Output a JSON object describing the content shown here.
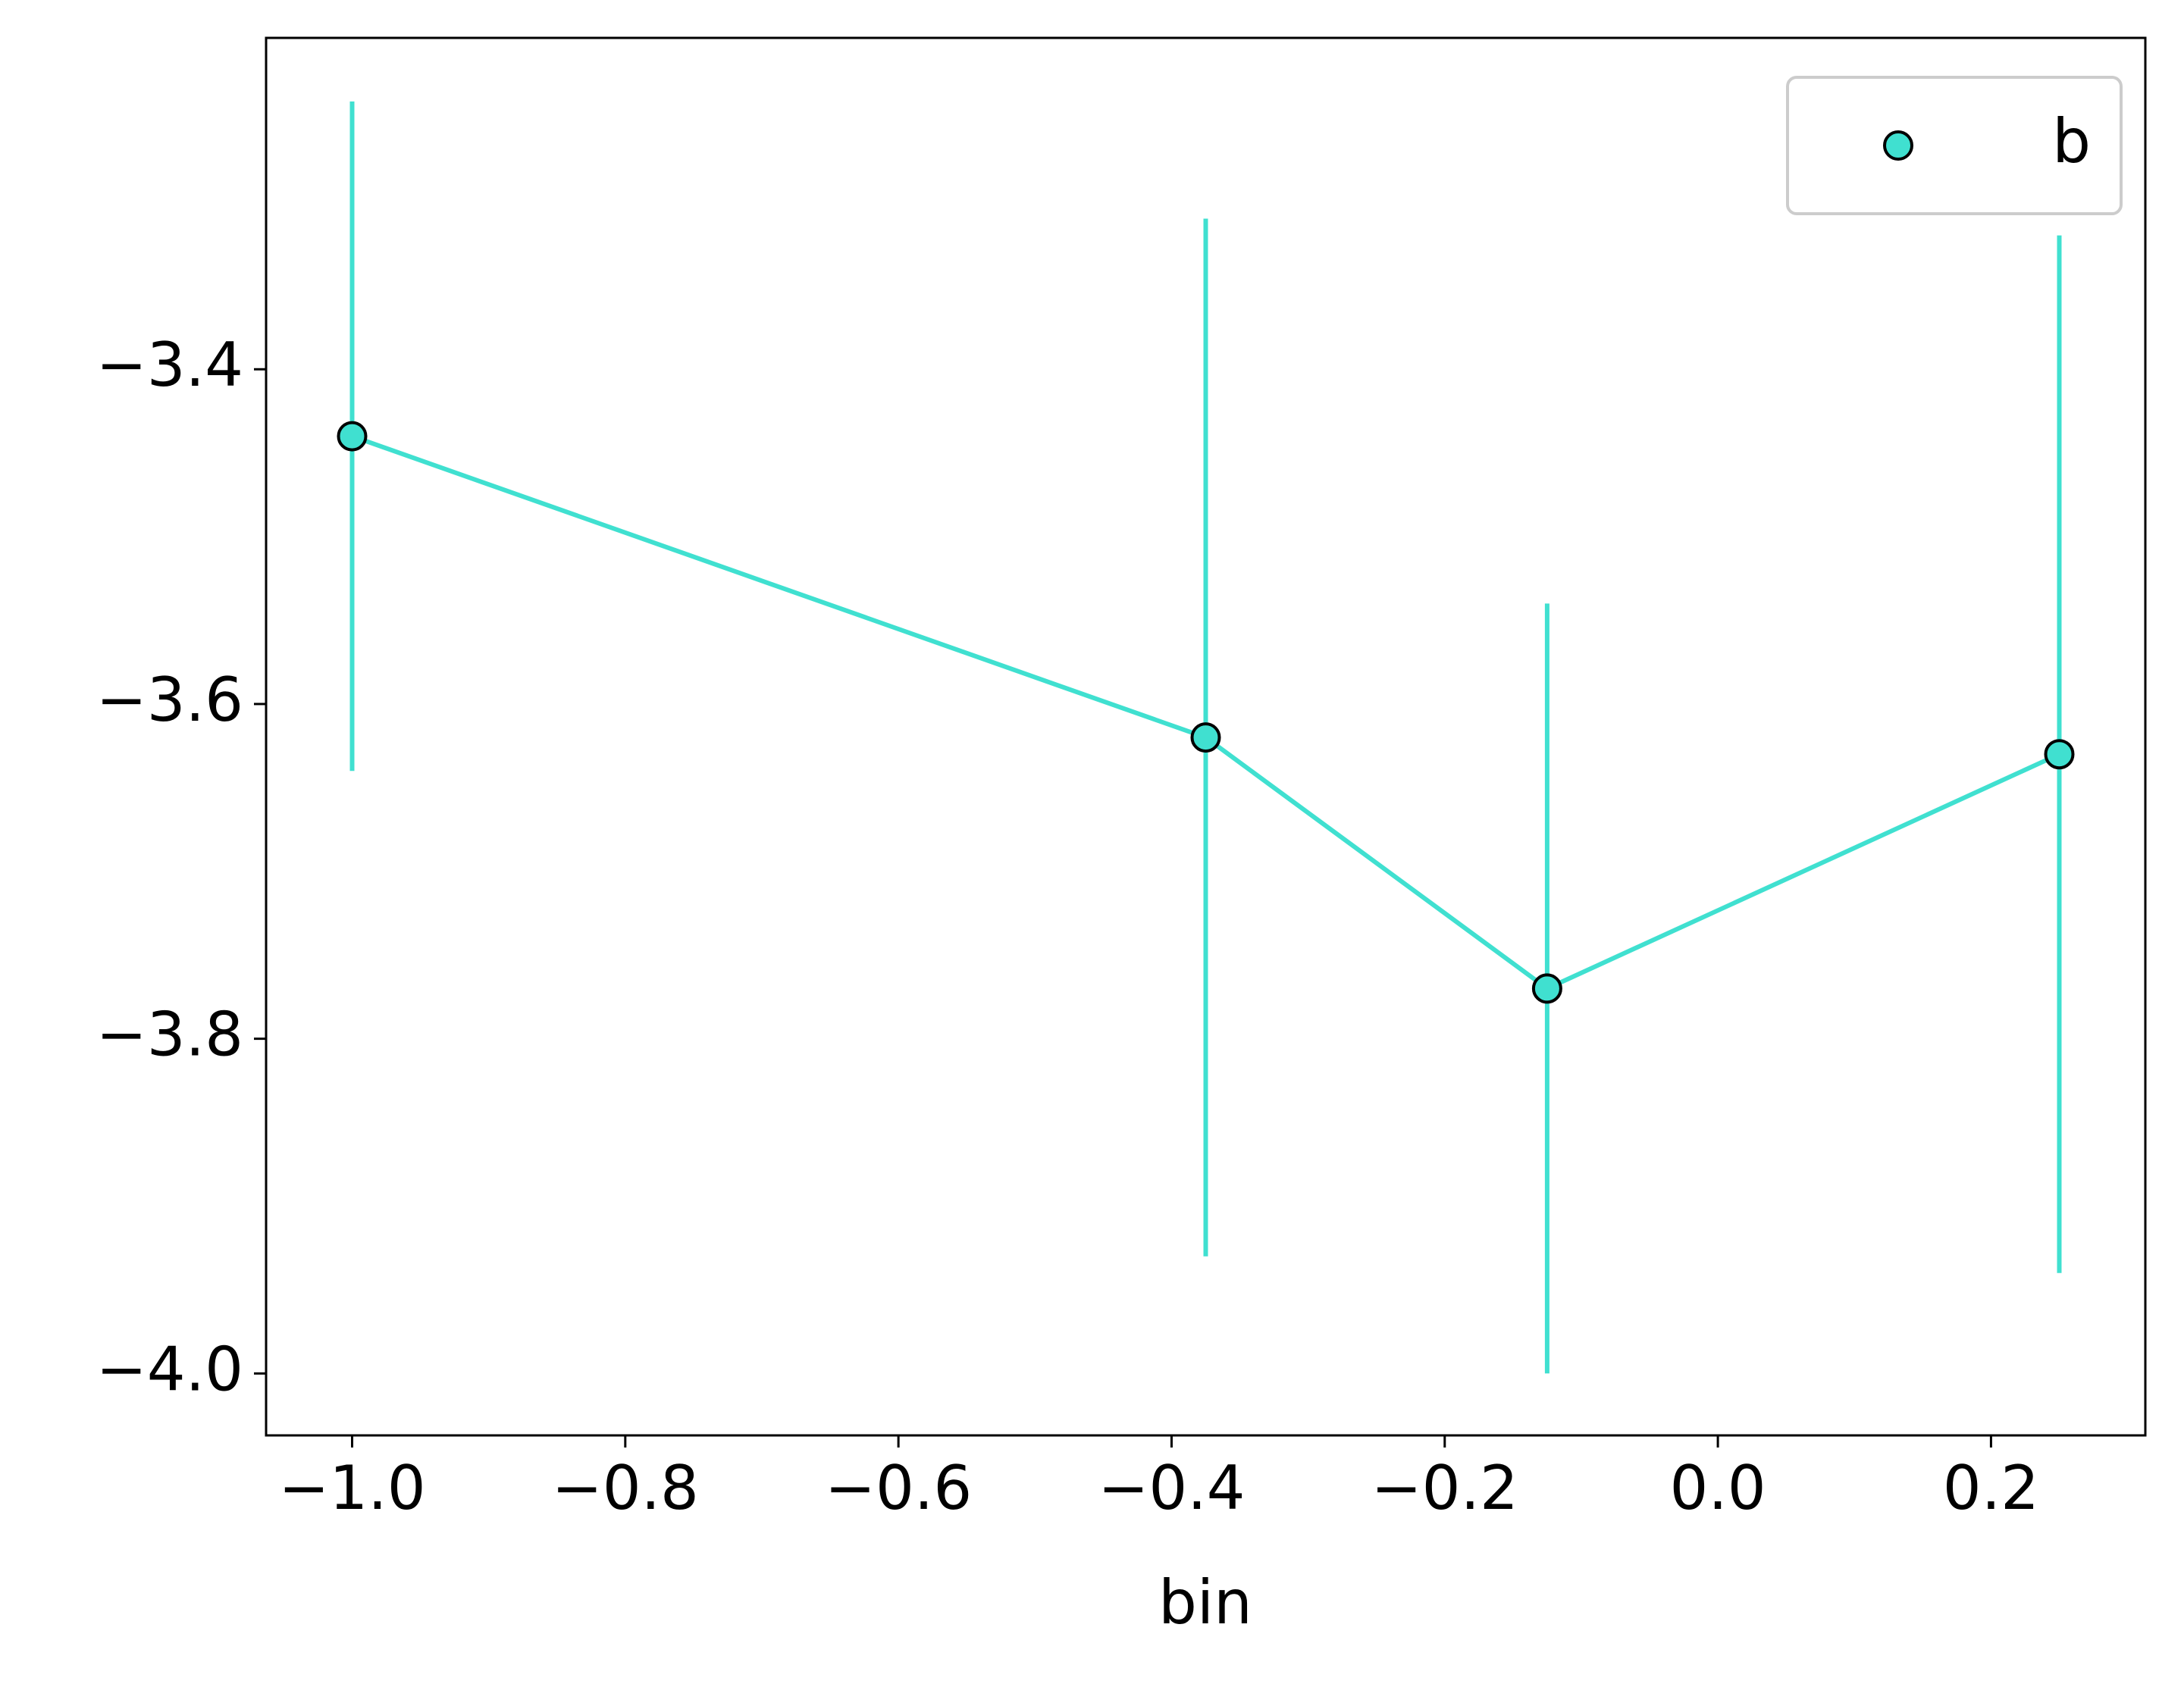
{
  "chart_data": {
    "type": "line",
    "x_label": "bin",
    "x": [
      -1.0,
      -0.375,
      -0.125,
      0.25
    ],
    "series": [
      {
        "name": "b",
        "color": "#40e0d0",
        "values": [
          -3.44,
          -3.62,
          -3.77,
          -3.63
        ],
        "errors": [
          0.2,
          0.31,
          0.23,
          0.31
        ]
      }
    ],
    "xlim": [
      -1.063,
      0.313
    ],
    "ylim": [
      -4.037,
      -3.202
    ],
    "xticks": [
      {
        "value": -1.0,
        "label": "−1.0"
      },
      {
        "value": -0.8,
        "label": "−0.8"
      },
      {
        "value": -0.6,
        "label": "−0.6"
      },
      {
        "value": -0.4,
        "label": "−0.4"
      },
      {
        "value": -0.2,
        "label": "−0.2"
      },
      {
        "value": 0.0,
        "label": "0.0"
      },
      0.2
    ],
    "yticks": [
      {
        "value": -4.0,
        "label": "−4.0"
      },
      {
        "value": -3.8,
        "label": "−3.8"
      },
      {
        "value": -3.6,
        "label": "−3.6"
      },
      {
        "value": -3.4,
        "label": "−3.4"
      }
    ],
    "legend": "upper right",
    "grid": false
  }
}
